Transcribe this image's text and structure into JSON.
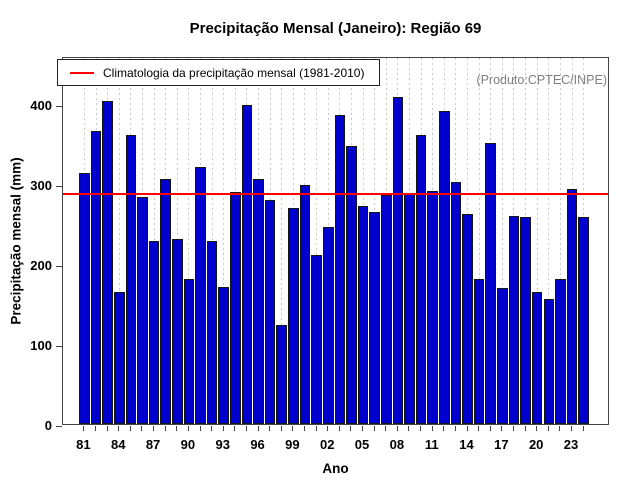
{
  "chart_data": {
    "type": "bar",
    "title": "Precipitação Mensal (Janeiro): Região 69",
    "xlabel": "Ano",
    "ylabel": "Precipitação mensal (mm)",
    "categories": [
      1981,
      1982,
      1983,
      1984,
      1985,
      1986,
      1987,
      1988,
      1989,
      1990,
      1991,
      1992,
      1993,
      1994,
      1995,
      1996,
      1997,
      1998,
      1999,
      2000,
      2001,
      2002,
      2003,
      2004,
      2005,
      2006,
      2007,
      2008,
      2009,
      2010,
      2011,
      2012,
      2013,
      2014,
      2015,
      2016,
      2017,
      2018,
      2019,
      2020,
      2021,
      2022,
      2023,
      2024
    ],
    "values": [
      315,
      368,
      405,
      166,
      362,
      285,
      230,
      308,
      232,
      183,
      323,
      230,
      173,
      291,
      400,
      307,
      281,
      125,
      271,
      300,
      213,
      247,
      387,
      349,
      274,
      266,
      287,
      410,
      290,
      362,
      292,
      392,
      304,
      264,
      182,
      353,
      171,
      261,
      260,
      166,
      157,
      182,
      295,
      260
    ],
    "ylim": [
      0,
      460
    ],
    "y_ticks": [
      0,
      100,
      200,
      300,
      400
    ],
    "x_tick_labels": [
      "81",
      "84",
      "87",
      "90",
      "93",
      "96",
      "99",
      "02",
      "05",
      "08",
      "11",
      "14",
      "17",
      "20",
      "23"
    ],
    "x_tick_step_years": 3,
    "grid": "vertical dotted line per year",
    "legend_position": "top-left",
    "reference_line": {
      "value": 288,
      "label": "Climatologia da precipitação mensal (1981-2010)",
      "color": "#FF0000"
    },
    "annotation": "(Produto:CPTEC/INPE)",
    "bar_color": "#0000CE"
  }
}
